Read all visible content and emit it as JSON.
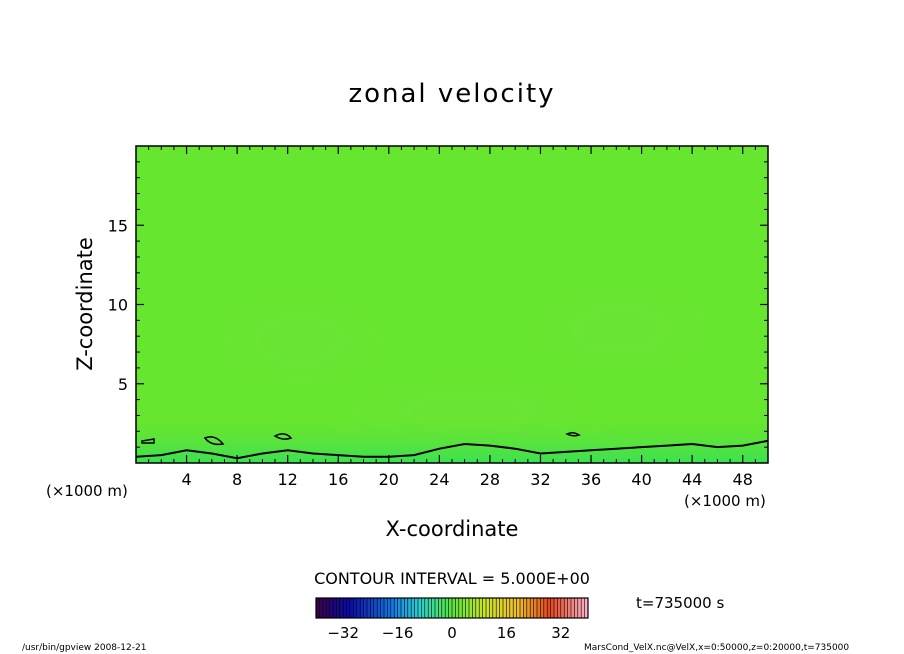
{
  "chart_data": {
    "type": "heatmap",
    "title": "zonal velocity",
    "xlabel": "X-coordinate",
    "ylabel": "Z-coordinate",
    "x_units": "(×1000 m)",
    "y_units": "(×1000 m)",
    "xlim": [
      0,
      50
    ],
    "ylim": [
      0,
      20
    ],
    "x_ticks": [
      4,
      8,
      12,
      16,
      20,
      24,
      28,
      32,
      36,
      40,
      44,
      48
    ],
    "y_ticks": [
      5,
      10,
      15
    ],
    "contour_interval_text": "CONTOUR INTERVAL = 5.000E+00",
    "time_text": "t=735000 s",
    "colorbar": {
      "range": [
        -40,
        40
      ],
      "ticks": [
        -32,
        -16,
        0,
        16,
        32
      ]
    },
    "field_value_approx": 0,
    "near_surface_value_approx": 2,
    "contour_level": 0,
    "contour_height_km": [
      [
        0,
        0.4
      ],
      [
        2,
        0.5
      ],
      [
        4,
        0.8
      ],
      [
        6,
        0.6
      ],
      [
        8,
        0.3
      ],
      [
        10,
        0.6
      ],
      [
        12,
        0.8
      ],
      [
        14,
        0.6
      ],
      [
        16,
        0.5
      ],
      [
        18,
        0.4
      ],
      [
        20,
        0.4
      ],
      [
        22,
        0.5
      ],
      [
        24,
        0.9
      ],
      [
        26,
        1.2
      ],
      [
        28,
        1.1
      ],
      [
        30,
        0.9
      ],
      [
        32,
        0.6
      ],
      [
        34,
        0.7
      ],
      [
        36,
        0.8
      ],
      [
        38,
        0.9
      ],
      [
        40,
        1.0
      ],
      [
        42,
        1.1
      ],
      [
        44,
        1.2
      ],
      [
        46,
        1.0
      ],
      [
        48,
        1.1
      ],
      [
        50,
        1.4
      ]
    ]
  },
  "footer": {
    "left": "/usr/bin/gpview   2008-12-21",
    "right": "MarsCond_VelX.nc@VelX,x=0:50000,z=0:20000,t=735000"
  }
}
